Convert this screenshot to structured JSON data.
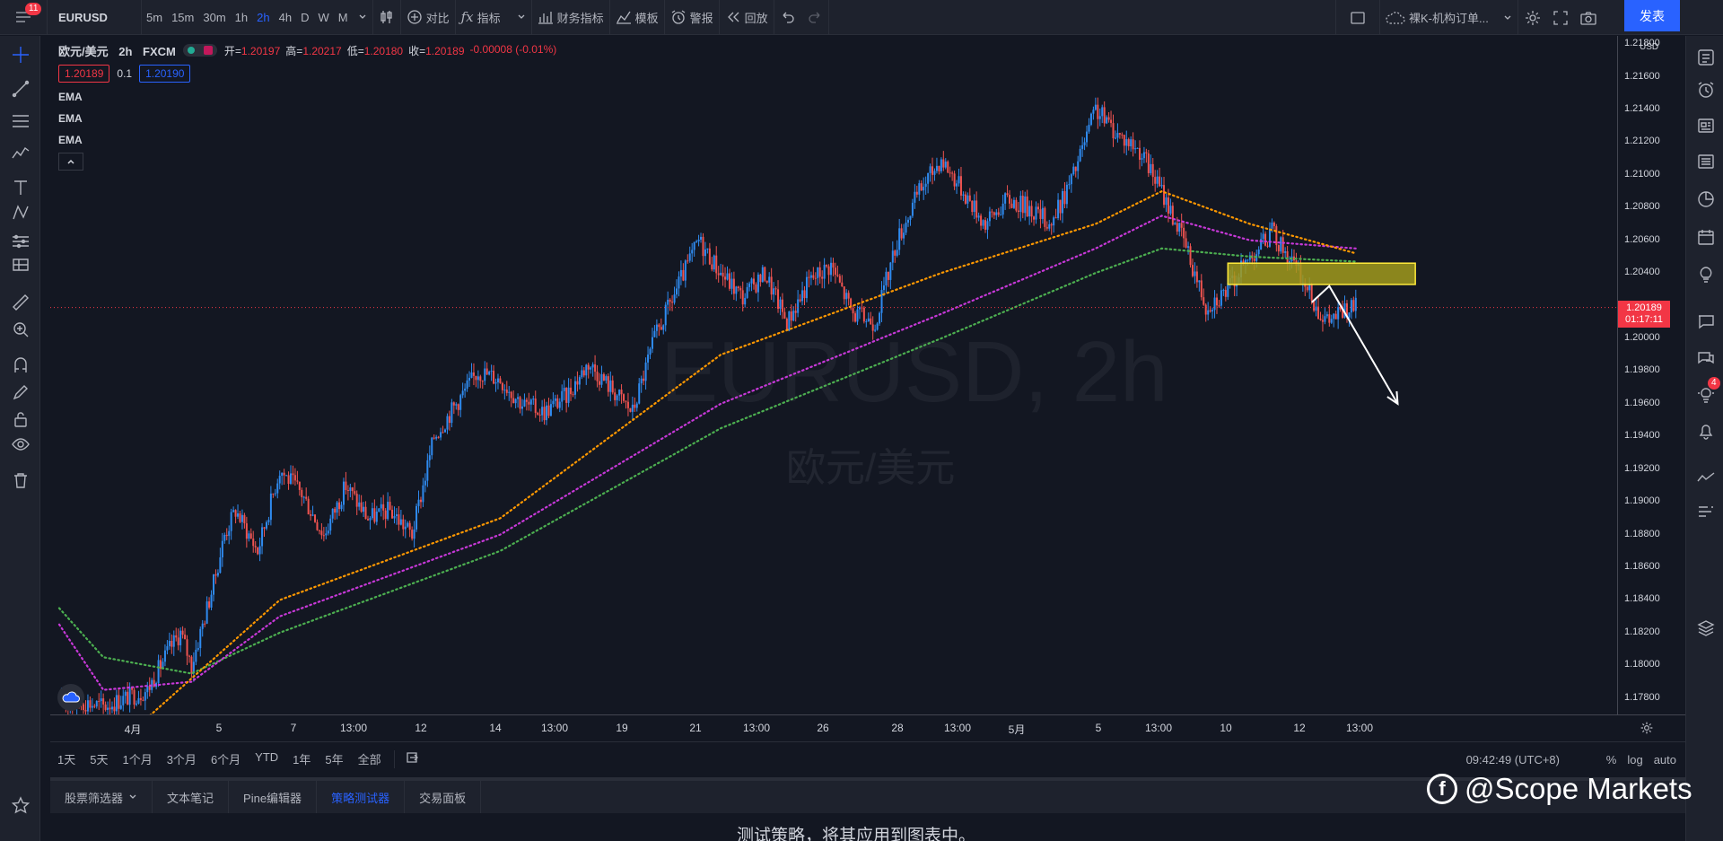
{
  "topbar": {
    "menu_badge": "11",
    "symbol": "EURUSD",
    "intervals": [
      "5m",
      "15m",
      "30m",
      "1h",
      "2h",
      "4h",
      "D",
      "W",
      "M"
    ],
    "active_interval": "2h",
    "compare_label": "对比",
    "indicators_label": "指标",
    "financials_label": "财务指标",
    "templates_label": "模板",
    "alert_label": "警报",
    "replay_label": "回放",
    "layout_name": "裸K-机构订单...",
    "publish_label": "发表"
  },
  "legend": {
    "title": "欧元/美元",
    "interval": "2h",
    "exchange": "FXCM",
    "open_label": "开=",
    "open": "1.20197",
    "high_label": "高=",
    "high": "1.20217",
    "low_label": "低=",
    "low": "1.20180",
    "close_label": "收=",
    "close": "1.20189",
    "change": "-0.00008 (-0.01%)",
    "bid": "1.20189",
    "spread": "0.1",
    "ask": "1.20190",
    "ema1": "EMA",
    "ema2": "EMA",
    "ema3": "EMA"
  },
  "watermark": {
    "main": "EURUSD, 2h",
    "sub": "欧元/美元"
  },
  "price_axis": {
    "currency": "USD",
    "last_price": "1.20189",
    "countdown": "01:17:11"
  },
  "time_axis": {
    "labels": [
      "4月",
      "5",
      "7",
      "13:00",
      "12",
      "14",
      "13:00",
      "19",
      "21",
      "13:00",
      "26",
      "28",
      "13:00",
      "5月",
      "5",
      "13:00",
      "10",
      "12",
      "13:00"
    ]
  },
  "ranges": {
    "items": [
      "1天",
      "5天",
      "1个月",
      "3个月",
      "6个月",
      "YTD",
      "1年",
      "5年",
      "全部"
    ],
    "clock": "09:42:49 (UTC+8)",
    "pct": "%",
    "log": "log",
    "auto": "auto"
  },
  "bottom": {
    "tabs": [
      "股票筛选器",
      "文本笔记",
      "Pine编辑器",
      "策略测试器",
      "交易面板"
    ],
    "active_tab": "策略测试器",
    "message": "测试策略，将其应用到图表中。"
  },
  "brand": {
    "text": "@Scope Markets"
  },
  "right_panel": {
    "chat_badge": "4"
  },
  "colors": {
    "up": "#2f8bf0",
    "down": "#ef5350",
    "ema_fast": "#ff9800",
    "ema_mid": "#c738d8",
    "ema_slow": "#4caf50",
    "zone_fill": "#a19a1c",
    "zone_border": "#ffeb3b",
    "last_price": "#f23645"
  },
  "chart_data": {
    "type": "candlestick",
    "symbol": "EURUSD",
    "interval": "2h",
    "y_range": [
      1.177,
      1.2185
    ],
    "y_ticks": [
      "1.21800",
      "1.21600",
      "1.21400",
      "1.21200",
      "1.21000",
      "1.20800",
      "1.20600",
      "1.20400",
      "1.20200",
      "1.20000",
      "1.19800",
      "1.19600",
      "1.19400",
      "1.19200",
      "1.19000",
      "1.18800",
      "1.18600",
      "1.18400",
      "1.18200",
      "1.18000",
      "1.17800"
    ],
    "close_path": [
      [
        0,
        1.1776
      ],
      [
        10,
        1.1778
      ],
      [
        20,
        1.1775
      ],
      [
        30,
        1.178
      ],
      [
        40,
        1.1785
      ],
      [
        50,
        1.181
      ],
      [
        55,
        1.182
      ],
      [
        60,
        1.18
      ],
      [
        70,
        1.185
      ],
      [
        75,
        1.188
      ],
      [
        80,
        1.1895
      ],
      [
        90,
        1.187
      ],
      [
        100,
        1.192
      ],
      [
        110,
        1.1905
      ],
      [
        120,
        1.188
      ],
      [
        130,
        1.191
      ],
      [
        140,
        1.189
      ],
      [
        150,
        1.1895
      ],
      [
        160,
        1.188
      ],
      [
        170,
        1.194
      ],
      [
        180,
        1.196
      ],
      [
        190,
        1.198
      ],
      [
        200,
        1.1975
      ],
      [
        210,
        1.196
      ],
      [
        220,
        1.1955
      ],
      [
        230,
        1.1965
      ],
      [
        240,
        1.1985
      ],
      [
        250,
        1.197
      ],
      [
        260,
        1.1955
      ],
      [
        270,
        1.2
      ],
      [
        280,
        1.203
      ],
      [
        290,
        1.206
      ],
      [
        300,
        1.204
      ],
      [
        310,
        1.2025
      ],
      [
        320,
        1.204
      ],
      [
        330,
        1.201
      ],
      [
        340,
        1.2035
      ],
      [
        350,
        1.2045
      ],
      [
        360,
        1.2015
      ],
      [
        370,
        1.201
      ],
      [
        380,
        1.206
      ],
      [
        390,
        1.209
      ],
      [
        400,
        1.211
      ],
      [
        410,
        1.209
      ],
      [
        420,
        1.207
      ],
      [
        430,
        1.2085
      ],
      [
        440,
        1.208
      ],
      [
        450,
        1.207
      ],
      [
        460,
        1.21
      ],
      [
        470,
        1.214
      ],
      [
        480,
        1.2125
      ],
      [
        490,
        1.2115
      ],
      [
        500,
        1.209
      ],
      [
        510,
        1.206
      ],
      [
        520,
        1.202
      ],
      [
        530,
        1.203
      ],
      [
        540,
        1.205
      ],
      [
        550,
        1.2065
      ],
      [
        560,
        1.2045
      ],
      [
        570,
        1.202
      ],
      [
        575,
        1.201
      ],
      [
        580,
        1.2015
      ],
      [
        588,
        1.2019
      ]
    ],
    "ema_fast_path": [
      [
        0,
        1.172
      ],
      [
        100,
        1.184
      ],
      [
        200,
        1.189
      ],
      [
        300,
        1.199
      ],
      [
        400,
        1.204
      ],
      [
        470,
        1.207
      ],
      [
        500,
        1.209
      ],
      [
        540,
        1.207
      ],
      [
        588,
        1.2052
      ]
    ],
    "ema_mid_path": [
      [
        0,
        1.1825
      ],
      [
        20,
        1.1785
      ],
      [
        60,
        1.179
      ],
      [
        100,
        1.183
      ],
      [
        200,
        1.188
      ],
      [
        300,
        1.196
      ],
      [
        400,
        1.2015
      ],
      [
        470,
        1.2055
      ],
      [
        500,
        1.2075
      ],
      [
        540,
        1.206
      ],
      [
        588,
        1.2055
      ]
    ],
    "ema_slow_path": [
      [
        0,
        1.1835
      ],
      [
        20,
        1.1805
      ],
      [
        60,
        1.1795
      ],
      [
        100,
        1.182
      ],
      [
        200,
        1.187
      ],
      [
        300,
        1.1945
      ],
      [
        400,
        1.2
      ],
      [
        470,
        1.204
      ],
      [
        500,
        1.2055
      ],
      [
        540,
        1.205
      ],
      [
        588,
        1.2047
      ]
    ],
    "zone": {
      "y_top": 1.2046,
      "y_bottom": 1.2033,
      "x_start": 530,
      "x_end": 615
    },
    "projection_arrow": [
      [
        568,
        1.2022
      ],
      [
        576,
        1.2032
      ],
      [
        607,
        1.196
      ]
    ]
  }
}
